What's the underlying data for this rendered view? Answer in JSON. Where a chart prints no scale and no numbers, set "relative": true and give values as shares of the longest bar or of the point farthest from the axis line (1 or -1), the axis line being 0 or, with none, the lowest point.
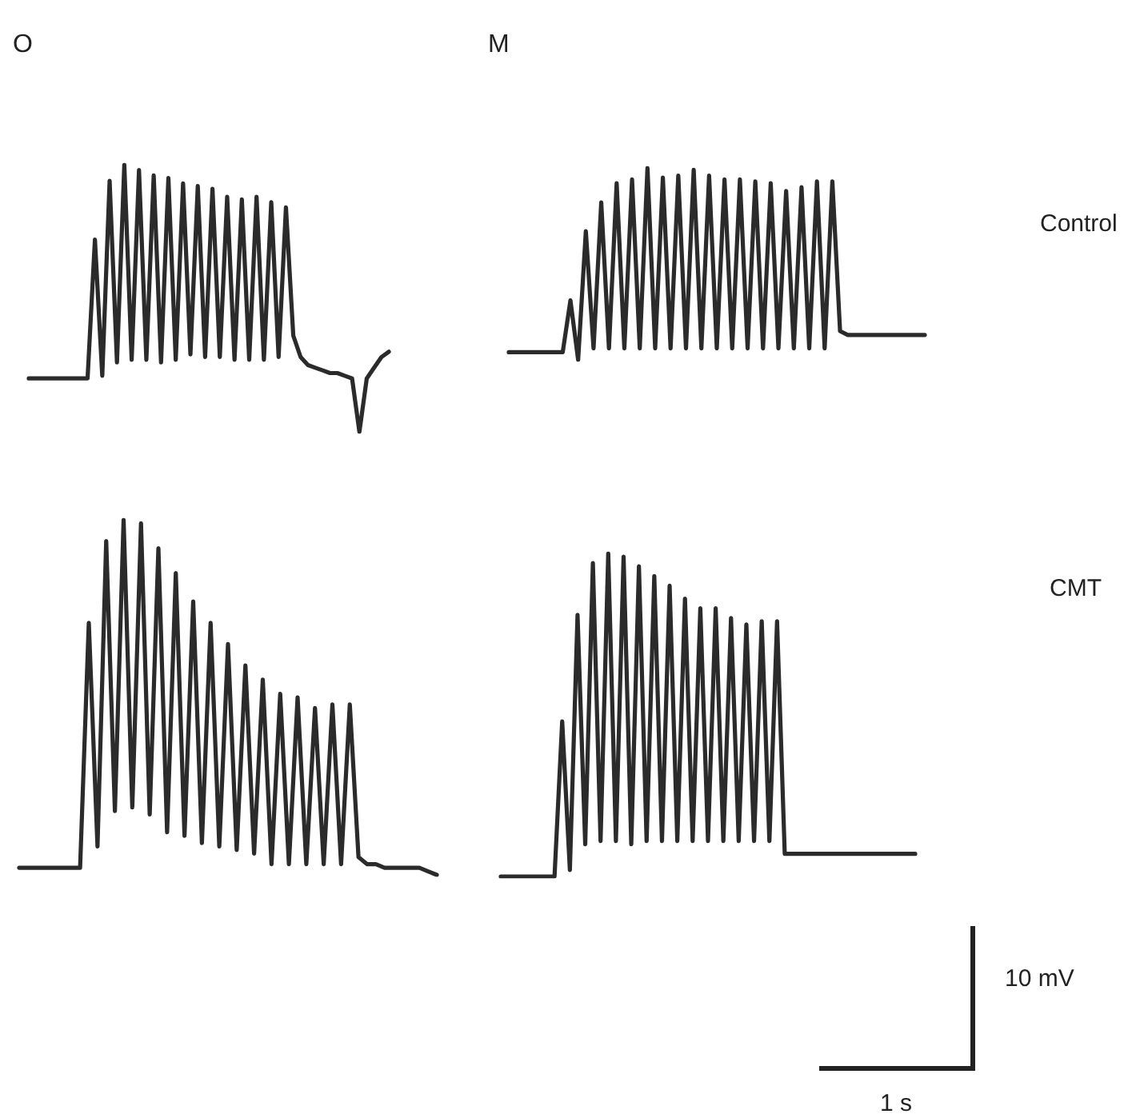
{
  "chart_data": [
    {
      "type": "line",
      "title": "O",
      "relative": true,
      "line_style": "solid",
      "color": "#2b2b2b",
      "categories": [
        null,
        null,
        null,
        null,
        null,
        null,
        null,
        null,
        null,
        null,
        null,
        null,
        null,
        null,
        null,
        null,
        null,
        null,
        null,
        null,
        null,
        null,
        null,
        null,
        null,
        null,
        null,
        null,
        null,
        null,
        null,
        null,
        null,
        null,
        null,
        null,
        null,
        null,
        null,
        null,
        null,
        null,
        null,
        null,
        null,
        null,
        null,
        null,
        null,
        null
      ],
      "values": [
        0.2,
        0.2,
        0.2,
        0.2,
        0.2,
        0.2,
        0.2,
        0.2,
        0.2,
        0.72,
        0.21,
        0.94,
        0.26,
        1,
        0.27,
        0.98,
        0.27,
        0.96,
        0.26,
        0.95,
        0.27,
        0.93,
        0.29,
        0.92,
        0.28,
        0.91,
        0.28,
        0.88,
        0.27,
        0.87,
        0.27,
        0.88,
        0.27,
        0.86,
        0.28,
        0.84,
        0.36,
        0.28,
        0.25,
        0.24,
        0.23,
        0.22,
        0.22,
        0.21,
        0.2,
        0,
        0.2,
        0.24,
        0.28,
        0.3
      ]
    },
    {
      "type": "line",
      "title": "M",
      "annotations": [
        "Control"
      ],
      "relative": true,
      "line_style": "solid",
      "color": "#2b2b2b",
      "categories": [
        null,
        null,
        null,
        null,
        null,
        null,
        null,
        null,
        null,
        null,
        null,
        null,
        null,
        null,
        null,
        null,
        null,
        null,
        null,
        null,
        null,
        null,
        null,
        null,
        null,
        null,
        null,
        null,
        null,
        null,
        null,
        null,
        null,
        null,
        null,
        null,
        null,
        null,
        null,
        null,
        null,
        null,
        null,
        null,
        null,
        null,
        null,
        null,
        null,
        null,
        null,
        null,
        null,
        null,
        null
      ],
      "values": [
        0.04,
        0.04,
        0.04,
        0.04,
        0.04,
        0.04,
        0.04,
        0.04,
        0.31,
        0,
        0.67,
        0.06,
        0.82,
        0.06,
        0.92,
        0.06,
        0.94,
        0.06,
        1,
        0.06,
        0.95,
        0.06,
        0.96,
        0.06,
        0.99,
        0.06,
        0.96,
        0.06,
        0.94,
        0.06,
        0.94,
        0.06,
        0.93,
        0.06,
        0.92,
        0.06,
        0.88,
        0.06,
        0.9,
        0.06,
        0.93,
        0.06,
        0.93,
        0.15,
        0.13,
        0.13,
        0.13,
        0.13,
        0.13,
        0.13,
        0.13,
        0.13,
        0.13,
        0.13,
        0.13
      ]
    },
    {
      "type": "line",
      "relative": true,
      "line_style": "solid",
      "color": "#2b2b2b",
      "categories": [
        null,
        null,
        null,
        null,
        null,
        null,
        null,
        null,
        null,
        null,
        null,
        null,
        null,
        null,
        null,
        null,
        null,
        null,
        null,
        null,
        null,
        null,
        null,
        null,
        null,
        null,
        null,
        null,
        null,
        null,
        null,
        null,
        null,
        null,
        null,
        null,
        null,
        null,
        null,
        null,
        null,
        null,
        null,
        null,
        null,
        null,
        null,
        null,
        null
      ],
      "values": [
        0.02,
        0.02,
        0.02,
        0.02,
        0.02,
        0.02,
        0.02,
        0.02,
        0.71,
        0.08,
        0.94,
        0.18,
        1,
        0.19,
        0.99,
        0.17,
        0.92,
        0.12,
        0.85,
        0.11,
        0.77,
        0.09,
        0.71,
        0.08,
        0.65,
        0.07,
        0.59,
        0.06,
        0.55,
        0.03,
        0.51,
        0.03,
        0.5,
        0.03,
        0.47,
        0.03,
        0.48,
        0.03,
        0.48,
        0.05,
        0.03,
        0.03,
        0.02,
        0.02,
        0.02,
        0.02,
        0.02,
        0.01,
        0
      ]
    },
    {
      "type": "line",
      "annotations": [
        "CMT",
        "10 mV",
        "1 s"
      ],
      "relative": true,
      "line_style": "solid",
      "color": "#2b2b2b",
      "categories": [
        null,
        null,
        null,
        null,
        null,
        null,
        null,
        null,
        null,
        null,
        null,
        null,
        null,
        null,
        null,
        null,
        null,
        null,
        null,
        null,
        null,
        null,
        null,
        null,
        null,
        null,
        null,
        null,
        null,
        null,
        null,
        null,
        null,
        null,
        null,
        null,
        null,
        null,
        null,
        null,
        null,
        null,
        null,
        null,
        null,
        null,
        null,
        null,
        null,
        null,
        null,
        null,
        null,
        null,
        null
      ],
      "values": [
        0,
        0,
        0,
        0,
        0,
        0,
        0,
        0,
        0.48,
        0.02,
        0.81,
        0.1,
        0.97,
        0.11,
        1,
        0.11,
        0.99,
        0.1,
        0.96,
        0.11,
        0.93,
        0.11,
        0.9,
        0.11,
        0.86,
        0.11,
        0.83,
        0.11,
        0.83,
        0.11,
        0.8,
        0.11,
        0.78,
        0.11,
        0.79,
        0.11,
        0.79,
        0.07,
        0.07,
        0.07,
        0.07,
        0.07,
        0.07,
        0.07,
        0.07,
        0.07,
        0.07,
        0.07,
        0.07,
        0.07,
        0.07,
        0.07,
        0.07,
        0.07,
        0.07
      ]
    }
  ]
}
